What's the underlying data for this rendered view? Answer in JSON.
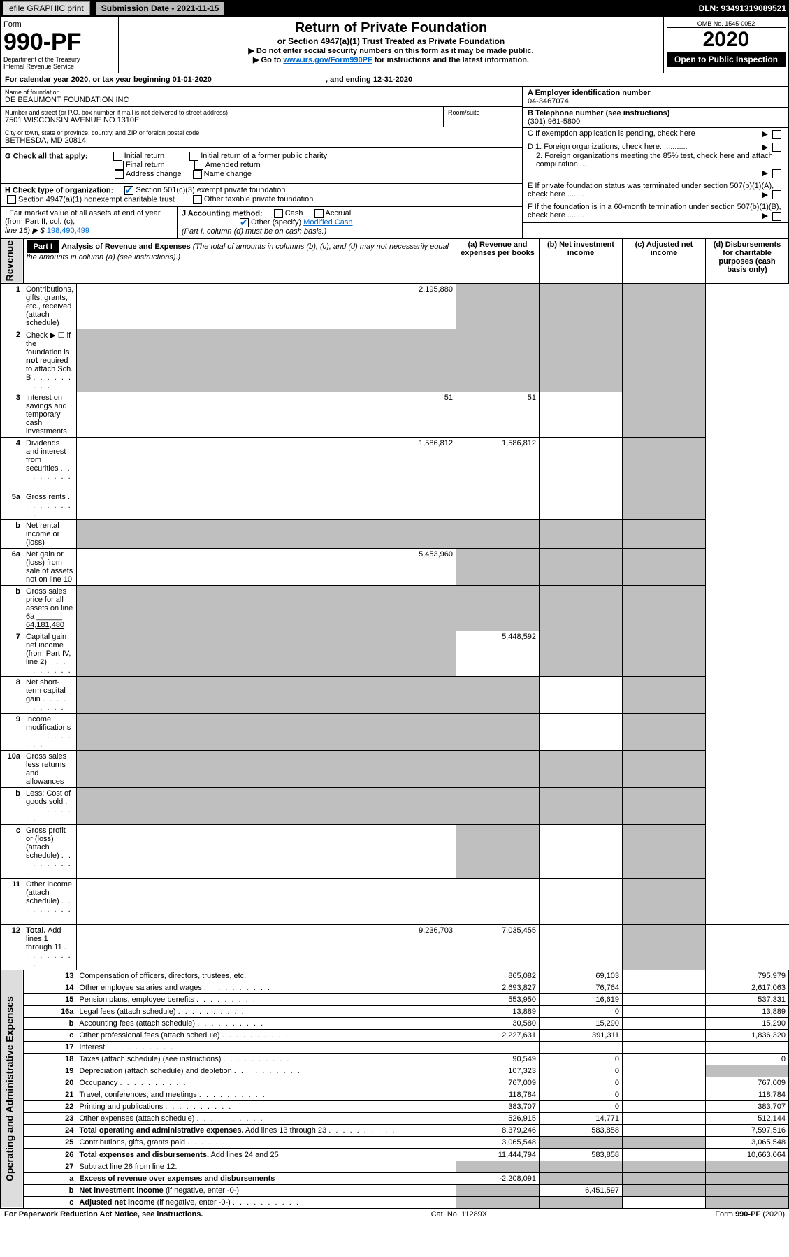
{
  "topbar": {
    "efile": "efile GRAPHIC print",
    "submission": "Submission Date - 2021-11-15",
    "dln": "DLN: 93491319089521"
  },
  "header": {
    "form": "Form",
    "formNo": "990-PF",
    "dept": "Department of the Treasury",
    "irs": "Internal Revenue Service",
    "title": "Return of Private Foundation",
    "sub": "or Section 4947(a)(1) Trust Treated as Private Foundation",
    "instr1": "▶ Do not enter social security numbers on this form as it may be made public.",
    "instr2a": "▶ Go to ",
    "instr2link": "www.irs.gov/Form990PF",
    "instr2b": " for instructions and the latest information.",
    "omb": "OMB No. 1545-0052",
    "year": "2020",
    "open": "Open to Public Inspection"
  },
  "cal": {
    "label": "For calendar year 2020, or tax year beginning ",
    "begin": "01-01-2020",
    "mid": " , and ending ",
    "end": "12-31-2020"
  },
  "name": {
    "lbl": "Name of foundation",
    "val": "DE BEAUMONT FOUNDATION INC"
  },
  "addr": {
    "lbl": "Number and street (or P.O. box number if mail is not delivered to street address)",
    "val": "7501 WISCONSIN AVENUE NO 1310E",
    "room": "Room/suite"
  },
  "city": {
    "lbl": "City or town, state or province, country, and ZIP or foreign postal code",
    "val": "BETHESDA, MD  20814"
  },
  "ein": {
    "lbl": "A Employer identification number",
    "val": "04-3467074"
  },
  "tel": {
    "lbl": "B Telephone number (see instructions)",
    "val": "(301) 961-5800"
  },
  "boxC": "C If exemption application is pending, check here",
  "boxD1": "D 1. Foreign organizations, check here.............",
  "boxD2": "2. Foreign organizations meeting the 85% test, check here and attach computation ...",
  "boxE": "E If private foundation status was terminated under section 507(b)(1)(A), check here ........",
  "boxF": "F If the foundation is in a 60-month termination under section 507(b)(1)(B), check here ........",
  "G": {
    "lbl": "G Check all that apply:",
    "o1": "Initial return",
    "o2": "Initial return of a former public charity",
    "o3": "Final return",
    "o4": "Amended return",
    "o5": "Address change",
    "o6": "Name change"
  },
  "H": {
    "lbl": "H Check type of organization:",
    "o1": "Section 501(c)(3) exempt private foundation",
    "o2": "Section 4947(a)(1) nonexempt charitable trust",
    "o3": "Other taxable private foundation"
  },
  "I": {
    "lbl": "I Fair market value of all assets at end of year (from Part II, col. (c),",
    "lbl2": "line 16) ▶ $",
    "val": "198,490,499"
  },
  "J": {
    "lbl": "J Accounting method:",
    "o1": "Cash",
    "o2": "Accrual",
    "o3": "Other (specify)",
    "spec": "Modified Cash",
    "note": "(Part I, column (d) must be on cash basis.)"
  },
  "part1": {
    "lbl": "Part I",
    "title": "Analysis of Revenue and Expenses",
    "note": "(The total of amounts in columns (b), (c), and (d) may not necessarily equal the amounts in column (a) (see instructions).)",
    "colA": "(a) Revenue and expenses per books",
    "colB": "(b) Net investment income",
    "colC": "(c) Adjusted net income",
    "colD": "(d) Disbursements for charitable purposes (cash basis only)"
  },
  "sideRev": "Revenue",
  "sideExp": "Operating and Administrative Expenses",
  "rows": [
    {
      "n": "1",
      "d": "Contributions, gifts, grants, etc., received (attach schedule)",
      "a": "2,195,880",
      "gB": true,
      "gC": true,
      "gD": true
    },
    {
      "n": "2",
      "d": "Check ▶ ☐ if the foundation is <b>not</b> required to attach Sch. B",
      "dots": true,
      "gA": true,
      "gB": true,
      "gC": true,
      "gD": true
    },
    {
      "n": "3",
      "d": "Interest on savings and temporary cash investments",
      "a": "51",
      "b": "51",
      "gD": true
    },
    {
      "n": "4",
      "d": "Dividends and interest from securities",
      "dots": true,
      "a": "1,586,812",
      "b": "1,586,812",
      "gD": true
    },
    {
      "n": "5a",
      "d": "Gross rents",
      "dots": true,
      "gD": true
    },
    {
      "n": "b",
      "d": "Net rental income or (loss)",
      "box": true,
      "gA": true,
      "gB": true,
      "gC": true,
      "gD": true
    },
    {
      "n": "6a",
      "d": "Net gain or (loss) from sale of assets not on line 10",
      "a": "5,453,960",
      "gB": true,
      "gC": true,
      "gD": true
    },
    {
      "n": "b",
      "d": "Gross sales price for all assets on line 6a ______ <u>64,181,480</u>",
      "gA": true,
      "gB": true,
      "gC": true,
      "gD": true
    },
    {
      "n": "7",
      "d": "Capital gain net income (from Part IV, line 2)",
      "dots": true,
      "gA": true,
      "b": "5,448,592",
      "gC": true,
      "gD": true
    },
    {
      "n": "8",
      "d": "Net short-term capital gain",
      "dots": true,
      "gA": true,
      "gB": true,
      "gD": true
    },
    {
      "n": "9",
      "d": "Income modifications",
      "dots": true,
      "gA": true,
      "gB": true,
      "gD": true
    },
    {
      "n": "10a",
      "d": "Gross sales less returns and allowances",
      "box": true,
      "gA": true,
      "gB": true,
      "gC": true,
      "gD": true
    },
    {
      "n": "b",
      "d": "Less: Cost of goods sold",
      "dots": true,
      "box": true,
      "gA": true,
      "gB": true,
      "gC": true,
      "gD": true
    },
    {
      "n": "c",
      "d": "Gross profit or (loss) (attach schedule)",
      "dots": true,
      "gB": true,
      "gD": true
    },
    {
      "n": "11",
      "d": "Other income (attach schedule)",
      "dots": true,
      "gD": true
    },
    {
      "n": "12",
      "d": "<b>Total.</b> Add lines 1 through 11",
      "dots": true,
      "a": "9,236,703",
      "b": "7,035,455",
      "gD": true,
      "topbd": true
    },
    {
      "n": "13",
      "d": "Compensation of officers, directors, trustees, etc.",
      "a": "865,082",
      "b": "69,103",
      "d2": "795,979"
    },
    {
      "n": "14",
      "d": "Other employee salaries and wages",
      "dots": true,
      "a": "2,693,827",
      "b": "76,764",
      "d2": "2,617,063"
    },
    {
      "n": "15",
      "d": "Pension plans, employee benefits",
      "dots": true,
      "a": "553,950",
      "b": "16,619",
      "d2": "537,331"
    },
    {
      "n": "16a",
      "d": "Legal fees (attach schedule)",
      "dots": true,
      "a": "13,889",
      "b": "0",
      "d2": "13,889"
    },
    {
      "n": "b",
      "d": "Accounting fees (attach schedule)",
      "dots": true,
      "a": "30,580",
      "b": "15,290",
      "d2": "15,290"
    },
    {
      "n": "c",
      "d": "Other professional fees (attach schedule)",
      "dots": true,
      "a": "2,227,631",
      "b": "391,311",
      "d2": "1,836,320"
    },
    {
      "n": "17",
      "d": "Interest",
      "dots": true
    },
    {
      "n": "18",
      "d": "Taxes (attach schedule) (see instructions)",
      "dots": true,
      "a": "90,549",
      "b": "0",
      "d2": "0"
    },
    {
      "n": "19",
      "d": "Depreciation (attach schedule) and depletion",
      "dots": true,
      "a": "107,323",
      "b": "0",
      "gD": true
    },
    {
      "n": "20",
      "d": "Occupancy",
      "dots": true,
      "a": "767,009",
      "b": "0",
      "d2": "767,009"
    },
    {
      "n": "21",
      "d": "Travel, conferences, and meetings",
      "dots": true,
      "a": "118,784",
      "b": "0",
      "d2": "118,784"
    },
    {
      "n": "22",
      "d": "Printing and publications",
      "dots": true,
      "a": "383,707",
      "b": "0",
      "d2": "383,707"
    },
    {
      "n": "23",
      "d": "Other expenses (attach schedule)",
      "dots": true,
      "a": "526,915",
      "b": "14,771",
      "d2": "512,144"
    },
    {
      "n": "24",
      "d": "<b>Total operating and administrative expenses.</b> Add lines 13 through 23",
      "dots": true,
      "a": "8,379,246",
      "b": "583,858",
      "d2": "7,597,516"
    },
    {
      "n": "25",
      "d": "Contributions, gifts, grants paid",
      "dots": true,
      "a": "3,065,548",
      "gB": true,
      "gC": true,
      "d2": "3,065,548"
    },
    {
      "n": "26",
      "d": "<b>Total expenses and disbursements.</b> Add lines 24 and 25",
      "a": "11,444,794",
      "b": "583,858",
      "d2": "10,663,064",
      "topbd": true
    },
    {
      "n": "27",
      "d": "Subtract line 26 from line 12:",
      "gA": true,
      "gB": true,
      "gC": true,
      "gD": true
    },
    {
      "n": "a",
      "d": "<b>Excess of revenue over expenses and disbursements</b>",
      "a": "-2,208,091",
      "gB": true,
      "gC": true,
      "gD": true
    },
    {
      "n": "b",
      "d": "<b>Net investment income</b> (if negative, enter -0-)",
      "gA": true,
      "b": "6,451,597",
      "gC": true,
      "gD": true
    },
    {
      "n": "c",
      "d": "<b>Adjusted net income</b> (if negative, enter -0-)",
      "dots": true,
      "gA": true,
      "gB": true,
      "gD": true
    }
  ],
  "footer": {
    "left": "For Paperwork Reduction Act Notice, see instructions.",
    "mid": "Cat. No. 11289X",
    "right": "Form 990-PF (2020)"
  }
}
